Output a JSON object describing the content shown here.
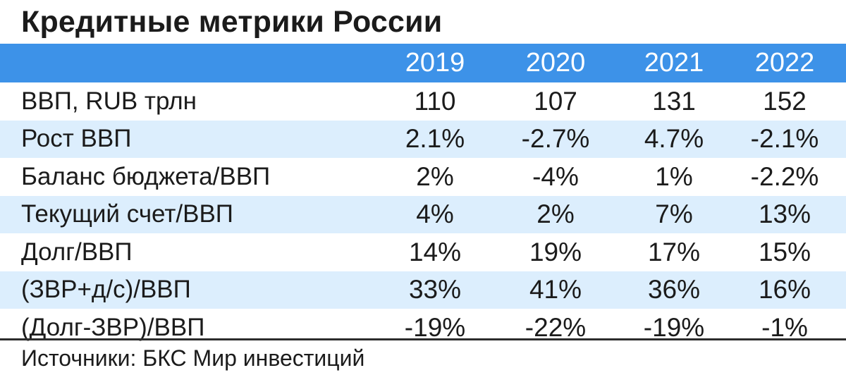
{
  "title": "Кредитные метрики России",
  "header": {
    "label": "",
    "years": [
      "2019",
      "2020",
      "2021",
      "2022"
    ]
  },
  "rows": [
    {
      "label": "ВВП, RUB трлн",
      "values": [
        "110",
        "107",
        "131",
        "152"
      ]
    },
    {
      "label": "Рост ВВП",
      "values": [
        "2.1%",
        "-2.7%",
        "4.7%",
        "-2.1%"
      ]
    },
    {
      "label": "Баланс бюджета/ВВП",
      "values": [
        "2%",
        "-4%",
        "1%",
        "-2.2%"
      ]
    },
    {
      "label": "Текущий счет/ВВП",
      "values": [
        "4%",
        "2%",
        "7%",
        "13%"
      ]
    },
    {
      "label": "Долг/ВВП",
      "values": [
        "14%",
        "19%",
        "17%",
        "15%"
      ]
    },
    {
      "label": "(ЗВР+д/с)/ВВП",
      "values": [
        "33%",
        "41%",
        "36%",
        "16%"
      ]
    },
    {
      "label": "(Долг-ЗВР)/ВВП",
      "values": [
        "-19%",
        "-22%",
        "-19%",
        "-1%"
      ]
    }
  ],
  "source": "Источники: БКС Мир инвестиций",
  "colors": {
    "header_bg": "#3d92e8",
    "header_text": "#ffffff",
    "stripe": "#dceefd",
    "text": "#1b1b1b"
  }
}
